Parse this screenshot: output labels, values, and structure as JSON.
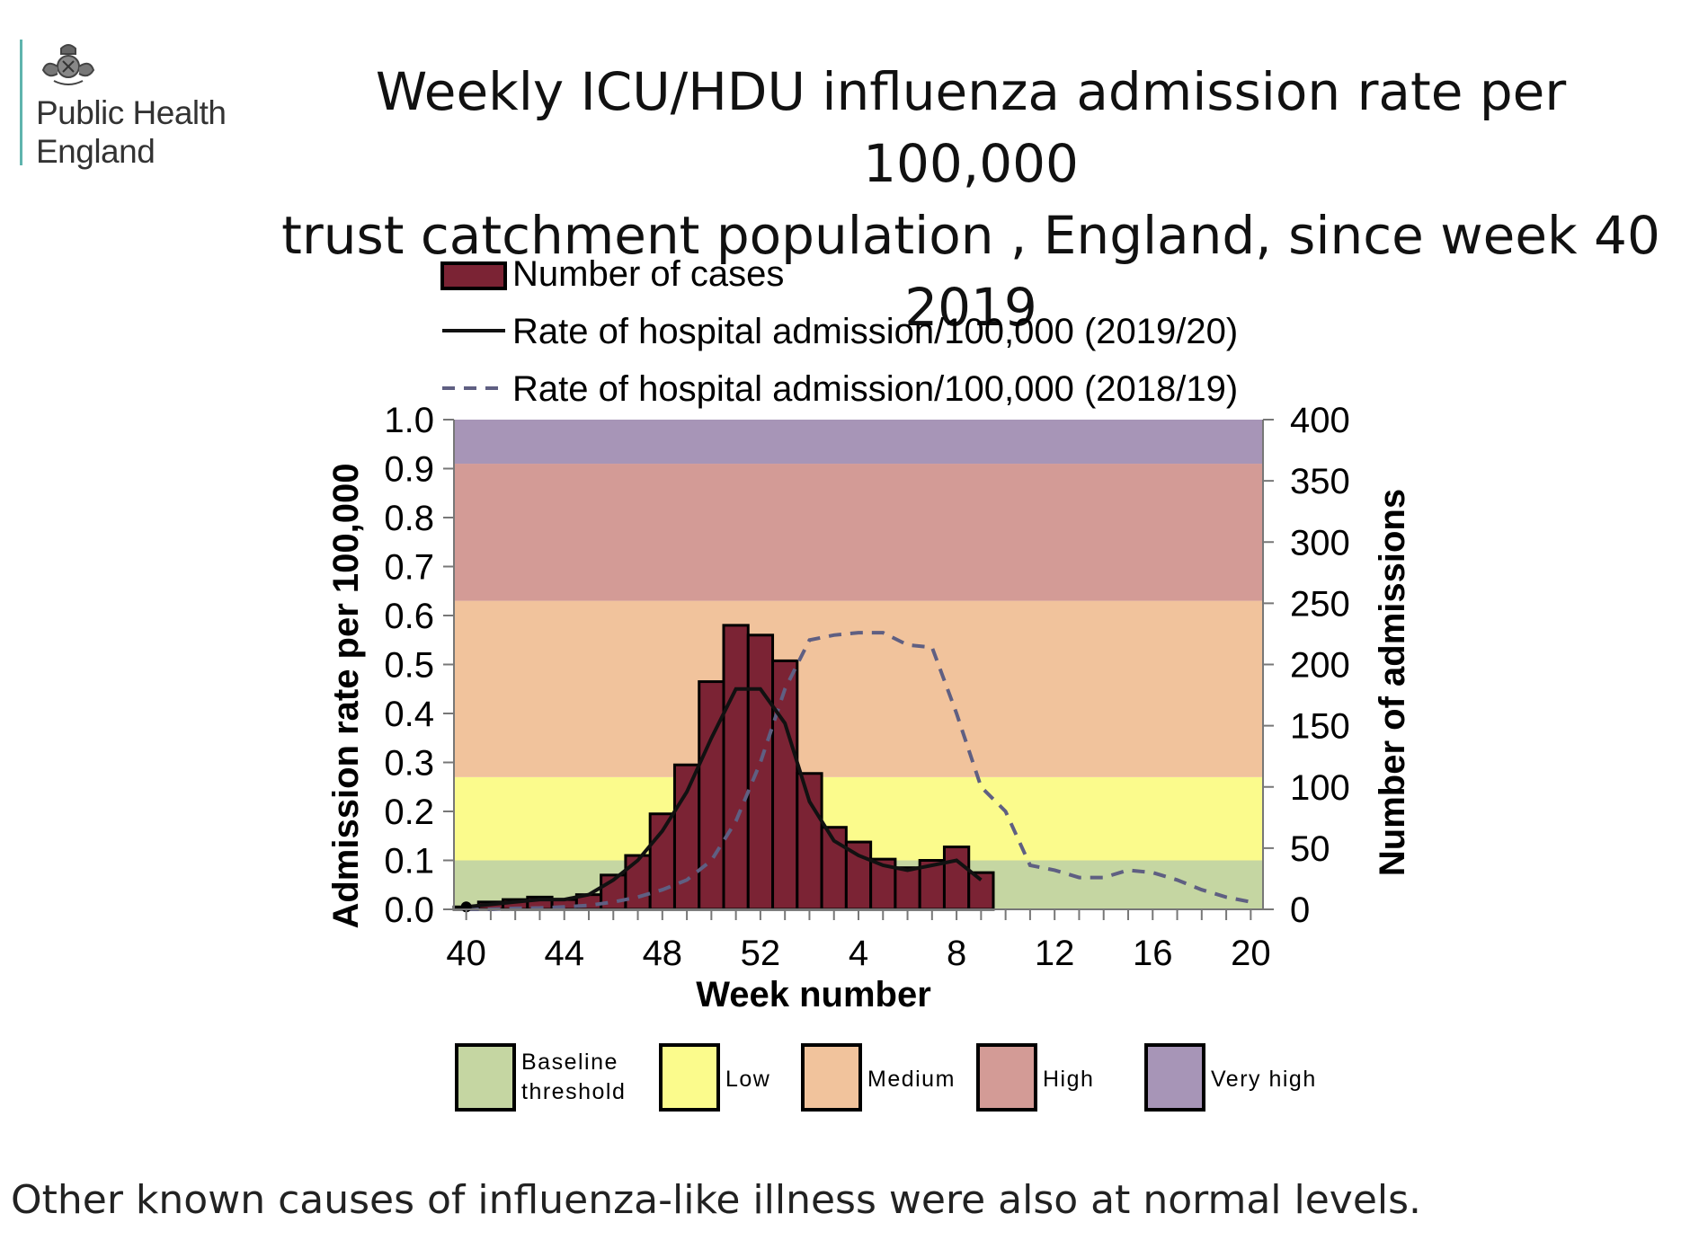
{
  "logo": {
    "icon": "royal-crest-icon",
    "line1": "Public Health",
    "line2": "England",
    "bar_color": "#5fb4ad"
  },
  "title": {
    "line1": "Weekly ICU/HDU influenza admission rate per 100,000",
    "line2": "trust catchment population , England, since week 40 2019"
  },
  "caption": "Other known causes of influenza-like illness were also at normal levels.",
  "chart_data": {
    "type": "bar+line",
    "xlabel": "Week number",
    "ylabel_left": "Admission rate per 100,000",
    "ylabel_right": "Number of admissions",
    "ylim_left": [
      0,
      1.0
    ],
    "ylim_right": [
      0,
      400
    ],
    "yticks_left": [
      "0.0",
      "0.1",
      "0.2",
      "0.3",
      "0.4",
      "0.5",
      "0.6",
      "0.7",
      "0.8",
      "0.9",
      "1.0"
    ],
    "yticks_right": [
      "0",
      "50",
      "100",
      "150",
      "200",
      "250",
      "300",
      "350",
      "400"
    ],
    "x_tick_labels": [
      "40",
      "44",
      "48",
      "52",
      "4",
      "8",
      "12",
      "16",
      "20"
    ],
    "x_tick_positions": [
      0,
      4,
      8,
      12,
      16,
      20,
      24,
      28,
      32
    ],
    "x_range": [
      -0.5,
      32.5
    ],
    "weeks": [
      "40",
      "41",
      "42",
      "43",
      "44",
      "45",
      "46",
      "47",
      "48",
      "49",
      "50",
      "51",
      "52",
      "1",
      "2",
      "3",
      "4",
      "5",
      "6",
      "7",
      "8",
      "9",
      "10",
      "11",
      "12",
      "13",
      "14",
      "15",
      "16",
      "17",
      "18",
      "19",
      "20"
    ],
    "legend": {
      "cases": "Number of cases",
      "rate_2019": "Rate of hospital admission/100,000 (2019/20)",
      "rate_2018": "Rate of hospital admission/100,000 (2018/19)"
    },
    "thresholds": [
      {
        "name": "Baseline threshold",
        "label_line1": "Baseline",
        "label_line2": "threshold",
        "from": 0.0,
        "to": 0.1,
        "color": "#c5d6a2"
      },
      {
        "name": "Low",
        "label_line1": "Low",
        "label_line2": "",
        "from": 0.1,
        "to": 0.27,
        "color": "#fbfb8c"
      },
      {
        "name": "Medium",
        "label_line1": "Medium",
        "label_line2": "",
        "from": 0.27,
        "to": 0.63,
        "color": "#f1c39c"
      },
      {
        "name": "High",
        "label_line1": "High",
        "label_line2": "",
        "from": 0.63,
        "to": 0.91,
        "color": "#d39b96"
      },
      {
        "name": "Very high",
        "label_line1": "Very high",
        "label_line2": "",
        "from": 0.91,
        "to": 1.0,
        "color": "#a795b7"
      }
    ],
    "series": [
      {
        "name": "Number of cases",
        "kind": "bar",
        "axis": "right",
        "color": "#7b2334",
        "values": [
          2,
          6,
          8,
          10,
          8,
          12,
          28,
          44,
          78,
          118,
          186,
          232,
          224,
          203,
          111,
          67,
          55,
          41,
          34,
          40,
          51,
          30
        ]
      },
      {
        "name": "Rate of hospital admission/100,000 (2019/20)",
        "kind": "line",
        "axis": "left",
        "color": "#111111",
        "values": [
          0.005,
          0.01,
          0.015,
          0.02,
          0.02,
          0.03,
          0.06,
          0.1,
          0.16,
          0.24,
          0.35,
          0.45,
          0.45,
          0.38,
          0.22,
          0.14,
          0.11,
          0.09,
          0.08,
          0.09,
          0.1,
          0.06
        ]
      },
      {
        "name": "Rate of hospital admission/100,000 (2018/19)",
        "kind": "line",
        "dashed": true,
        "axis": "left",
        "color": "#5f5f82",
        "values": [
          0.0,
          0.0,
          0.002,
          0.003,
          0.005,
          0.008,
          0.015,
          0.025,
          0.04,
          0.06,
          0.1,
          0.18,
          0.3,
          0.45,
          0.55,
          0.56,
          0.565,
          0.565,
          0.54,
          0.535,
          0.4,
          0.25,
          0.2,
          0.09,
          0.08,
          0.065,
          0.065,
          0.08,
          0.075,
          0.06,
          0.04,
          0.025,
          0.015
        ]
      }
    ]
  }
}
